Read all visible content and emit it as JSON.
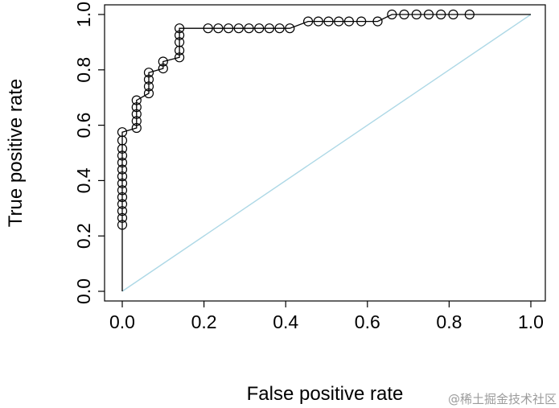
{
  "page": {
    "background": "#ffffff"
  },
  "watermark": {
    "text": "@稀土掘金技术社区",
    "color": "#9b9b9b"
  },
  "chart_data": {
    "type": "line",
    "title": "",
    "xlabel": "False positive rate",
    "ylabel": "True positive rate",
    "xlim": [
      0,
      1
    ],
    "ylim": [
      0,
      1
    ],
    "grid": false,
    "legend_position": "none",
    "x_tick_values": [
      0.0,
      0.2,
      0.4,
      0.6,
      0.8,
      1.0
    ],
    "x_tick_labels": [
      "0.0",
      "0.2",
      "0.4",
      "0.6",
      "0.8",
      "1.0"
    ],
    "y_tick_values": [
      0.0,
      0.2,
      0.4,
      0.6,
      0.8,
      1.0
    ],
    "y_tick_labels": [
      "0.0",
      "0.2",
      "0.4",
      "0.6",
      "0.8",
      "1.0"
    ],
    "series": [
      {
        "name": "ROC curve",
        "style": "line with open circle markers",
        "color": "#000000",
        "line_start": [
          0,
          0
        ],
        "line_end": [
          1,
          1
        ],
        "points": [
          [
            0,
            0.24
          ],
          [
            0,
            0.265
          ],
          [
            0,
            0.29
          ],
          [
            0,
            0.315
          ],
          [
            0,
            0.34
          ],
          [
            0,
            0.365
          ],
          [
            0,
            0.39
          ],
          [
            0,
            0.415
          ],
          [
            0,
            0.44
          ],
          [
            0,
            0.465
          ],
          [
            0,
            0.49
          ],
          [
            0,
            0.515
          ],
          [
            0,
            0.545
          ],
          [
            0,
            0.575
          ],
          [
            0.035,
            0.59
          ],
          [
            0.035,
            0.615
          ],
          [
            0.035,
            0.64
          ],
          [
            0.035,
            0.665
          ],
          [
            0.035,
            0.69
          ],
          [
            0.065,
            0.715
          ],
          [
            0.065,
            0.74
          ],
          [
            0.065,
            0.765
          ],
          [
            0.065,
            0.79
          ],
          [
            0.1,
            0.805
          ],
          [
            0.1,
            0.83
          ],
          [
            0.14,
            0.845
          ],
          [
            0.14,
            0.87
          ],
          [
            0.14,
            0.9
          ],
          [
            0.14,
            0.925
          ],
          [
            0.14,
            0.95
          ],
          [
            0.21,
            0.95
          ],
          [
            0.235,
            0.95
          ],
          [
            0.26,
            0.95
          ],
          [
            0.285,
            0.95
          ],
          [
            0.31,
            0.95
          ],
          [
            0.335,
            0.95
          ],
          [
            0.36,
            0.95
          ],
          [
            0.385,
            0.95
          ],
          [
            0.41,
            0.95
          ],
          [
            0.455,
            0.975
          ],
          [
            0.48,
            0.975
          ],
          [
            0.505,
            0.975
          ],
          [
            0.53,
            0.975
          ],
          [
            0.555,
            0.975
          ],
          [
            0.585,
            0.975
          ],
          [
            0.625,
            0.975
          ],
          [
            0.66,
            1
          ],
          [
            0.69,
            1
          ],
          [
            0.72,
            1
          ],
          [
            0.75,
            1
          ],
          [
            0.78,
            1
          ],
          [
            0.81,
            1
          ],
          [
            0.85,
            1
          ]
        ]
      },
      {
        "name": "chance diagonal",
        "style": "straight reference line",
        "color": "#add8e6",
        "points": [
          [
            0,
            0
          ],
          [
            1,
            1
          ]
        ]
      }
    ]
  }
}
